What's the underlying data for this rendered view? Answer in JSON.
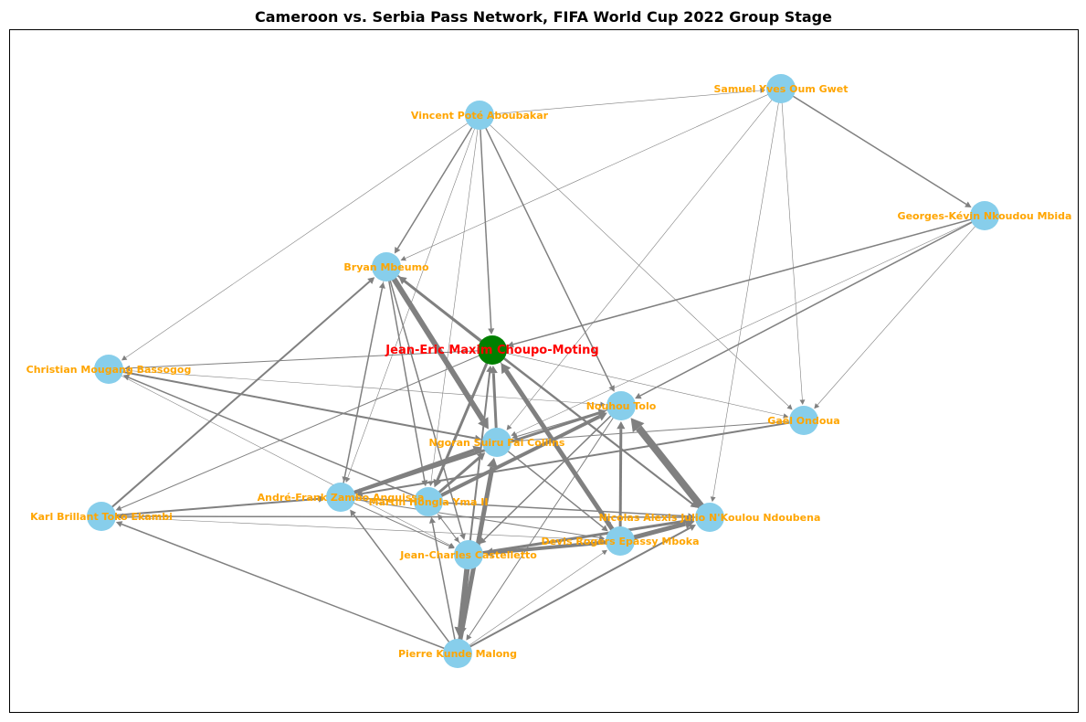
{
  "title": "Cameroon vs. Serbia Pass Network, FIFA World Cup 2022 Group Stage",
  "colors": {
    "node": "#87CEEB",
    "hub_node": "#008000",
    "edge": "#808080",
    "label": "#FFA500",
    "hub_label": "#FF0000",
    "frame": "#000000"
  },
  "nodes": [
    {
      "id": "vincent",
      "label": "Vincent Poté Aboubakar"
    },
    {
      "id": "samuel",
      "label": "Samuel Yves Oum Gwet"
    },
    {
      "id": "georges",
      "label": "Georges-Kévin Nkoudou Mbida"
    },
    {
      "id": "bryan",
      "label": "Bryan Mbeumo"
    },
    {
      "id": "choupo",
      "label": "Jean-Eric Maxim Choupo-Moting",
      "hub": true
    },
    {
      "id": "christian",
      "label": "Christian Mougang Bassogog"
    },
    {
      "id": "nouhou",
      "label": "Nouhou Tolo"
    },
    {
      "id": "gael",
      "label": "Gaël Ondoua"
    },
    {
      "id": "ngoran",
      "label": "Ngoran Suiru Fai Collins"
    },
    {
      "id": "andre",
      "label": "André-Frank Zambo Anguissa"
    },
    {
      "id": "martin",
      "label": "Martin Hongla Yma II"
    },
    {
      "id": "karl",
      "label": "Karl Brillant Toko Ekambi"
    },
    {
      "id": "nicolas",
      "label": "Nicolas Alexis Julio N'Koulou Ndoubena"
    },
    {
      "id": "devis",
      "label": "Devis Rogers Epassy Mboka"
    },
    {
      "id": "jc",
      "label": "Jean-Charles Castelletto"
    },
    {
      "id": "pierre",
      "label": "Pierre Kunde Malong"
    }
  ],
  "edges": [
    {
      "from": "nicolas",
      "to": "nouhou",
      "weight": 8
    },
    {
      "from": "bryan",
      "to": "ngoran",
      "weight": 6
    },
    {
      "from": "jc",
      "to": "pierre",
      "weight": 6
    },
    {
      "from": "pierre",
      "to": "ngoran",
      "weight": 5
    },
    {
      "from": "devis",
      "to": "choupo",
      "weight": 5
    },
    {
      "from": "devis",
      "to": "nicolas",
      "weight": 5
    },
    {
      "from": "martin",
      "to": "nouhou",
      "weight": 4
    },
    {
      "from": "andre",
      "to": "ngoran",
      "weight": 4
    },
    {
      "from": "devis",
      "to": "jc",
      "weight": 4
    },
    {
      "from": "martin",
      "to": "ngoran",
      "weight": 3
    },
    {
      "from": "choupo",
      "to": "martin",
      "weight": 3
    },
    {
      "from": "ngoran",
      "to": "choupo",
      "weight": 3
    },
    {
      "from": "devis",
      "to": "nouhou",
      "weight": 3
    },
    {
      "from": "andre",
      "to": "nouhou",
      "weight": 3
    },
    {
      "from": "choupo",
      "to": "bryan",
      "weight": 3
    },
    {
      "from": "jc",
      "to": "nicolas",
      "weight": 3
    },
    {
      "from": "pierre",
      "to": "nicolas",
      "weight": 2
    },
    {
      "from": "christian",
      "to": "ngoran",
      "weight": 2
    },
    {
      "from": "karl",
      "to": "bryan",
      "weight": 2
    },
    {
      "from": "karl",
      "to": "andre",
      "weight": 2
    },
    {
      "from": "gael",
      "to": "andre",
      "weight": 2
    },
    {
      "from": "jc",
      "to": "choupo",
      "weight": 2
    },
    {
      "from": "bryan",
      "to": "nicolas",
      "weight": 2
    },
    {
      "from": "samuel",
      "to": "georges",
      "weight": 1.5
    },
    {
      "from": "georges",
      "to": "choupo",
      "weight": 1.5
    },
    {
      "from": "georges",
      "to": "nouhou",
      "weight": 1.5
    },
    {
      "from": "vincent",
      "to": "bryan",
      "weight": 1.5
    },
    {
      "from": "vincent",
      "to": "choupo",
      "weight": 1.5
    },
    {
      "from": "vincent",
      "to": "nouhou",
      "weight": 1.5
    },
    {
      "from": "andre",
      "to": "bryan",
      "weight": 1.5
    },
    {
      "from": "pierre",
      "to": "andre",
      "weight": 1.5
    },
    {
      "from": "pierre",
      "to": "karl",
      "weight": 1.5
    },
    {
      "from": "martin",
      "to": "christian",
      "weight": 1.5
    },
    {
      "from": "choupo",
      "to": "nicolas",
      "weight": 1.5
    },
    {
      "from": "ngoran",
      "to": "devis",
      "weight": 1.5
    },
    {
      "from": "andre",
      "to": "nicolas",
      "weight": 1.5
    },
    {
      "from": "pierre",
      "to": "martin",
      "weight": 1.5
    },
    {
      "from": "nicolas",
      "to": "karl",
      "weight": 1.5
    },
    {
      "from": "bryan",
      "to": "martin",
      "weight": 1.5
    },
    {
      "from": "bryan",
      "to": "jc",
      "weight": 1.5
    },
    {
      "from": "nouhou",
      "to": "jc",
      "weight": 1.5
    },
    {
      "from": "choupo",
      "to": "christian",
      "weight": 1
    },
    {
      "from": "choupo",
      "to": "karl",
      "weight": 1
    },
    {
      "from": "choupo",
      "to": "devis",
      "weight": 1
    },
    {
      "from": "gael",
      "to": "ngoran",
      "weight": 1
    },
    {
      "from": "jc",
      "to": "martin",
      "weight": 1
    },
    {
      "from": "andre",
      "to": "devis",
      "weight": 1
    },
    {
      "from": "andre",
      "to": "jc",
      "weight": 1
    },
    {
      "from": "nouhou",
      "to": "pierre",
      "weight": 1
    },
    {
      "from": "nouhou",
      "to": "ngoran",
      "weight": 1
    },
    {
      "from": "vincent",
      "to": "christian",
      "weight": 0.6
    },
    {
      "from": "vincent",
      "to": "samuel",
      "weight": 0.6
    },
    {
      "from": "vincent",
      "to": "gael",
      "weight": 0.6
    },
    {
      "from": "vincent",
      "to": "andre",
      "weight": 0.6
    },
    {
      "from": "vincent",
      "to": "martin",
      "weight": 0.6
    },
    {
      "from": "samuel",
      "to": "bryan",
      "weight": 0.6
    },
    {
      "from": "samuel",
      "to": "gael",
      "weight": 0.6
    },
    {
      "from": "samuel",
      "to": "nicolas",
      "weight": 0.6
    },
    {
      "from": "samuel",
      "to": "ngoran",
      "weight": 0.6
    },
    {
      "from": "georges",
      "to": "gael",
      "weight": 0.6
    },
    {
      "from": "georges",
      "to": "ngoran",
      "weight": 0.6
    },
    {
      "from": "christian",
      "to": "nouhou",
      "weight": 0.6
    },
    {
      "from": "christian",
      "to": "jc",
      "weight": 0.6
    },
    {
      "from": "karl",
      "to": "devis",
      "weight": 0.6
    },
    {
      "from": "karl",
      "to": "nicolas",
      "weight": 0.6
    },
    {
      "from": "bryan",
      "to": "andre",
      "weight": 0.6
    },
    {
      "from": "choupo",
      "to": "gael",
      "weight": 0.6
    },
    {
      "from": "pierre",
      "to": "devis",
      "weight": 0.6
    },
    {
      "from": "martin",
      "to": "jc",
      "weight": 0.6
    },
    {
      "from": "nouhou",
      "to": "andre",
      "weight": 0.6
    }
  ]
}
